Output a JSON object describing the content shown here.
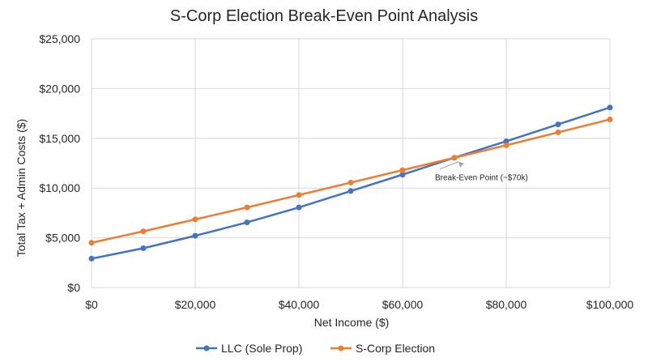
{
  "chart_data": {
    "type": "line",
    "title": "S-Corp Election Break-Even Point Analysis",
    "xlabel": "Net Income ($)",
    "ylabel": "Total Tax + Admin Costs ($)",
    "x": [
      0,
      10000,
      20000,
      30000,
      40000,
      50000,
      60000,
      70000,
      80000,
      90000,
      100000
    ],
    "xlim": [
      0,
      100000
    ],
    "ylim": [
      0,
      25000
    ],
    "x_ticks": [
      0,
      20000,
      40000,
      60000,
      80000,
      100000
    ],
    "x_tick_labels": [
      "$0",
      "$20,000",
      "$40,000",
      "$60,000",
      "$80,000",
      "$100,000"
    ],
    "y_ticks": [
      0,
      5000,
      10000,
      15000,
      20000,
      25000
    ],
    "y_tick_labels": [
      "$0",
      "$5,000",
      "$10,000",
      "$15,000",
      "$20,000",
      "$25,000"
    ],
    "grid": true,
    "legend_position": "bottom",
    "series": [
      {
        "name": "LLC (Sole Prop)",
        "color": "#4472C4",
        "values": [
          2900,
          3950,
          5200,
          6550,
          8050,
          9700,
          11350,
          13050,
          14700,
          16400,
          18100
        ]
      },
      {
        "name": "S-Corp Election",
        "color": "#ED7D31",
        "values": [
          4500,
          5650,
          6850,
          8050,
          9300,
          10550,
          11800,
          13050,
          14300,
          15600,
          16900
        ]
      }
    ],
    "annotations": [
      {
        "text": "Break-Even Point (~$70k)",
        "x": 70000,
        "y": 13050
      }
    ]
  }
}
